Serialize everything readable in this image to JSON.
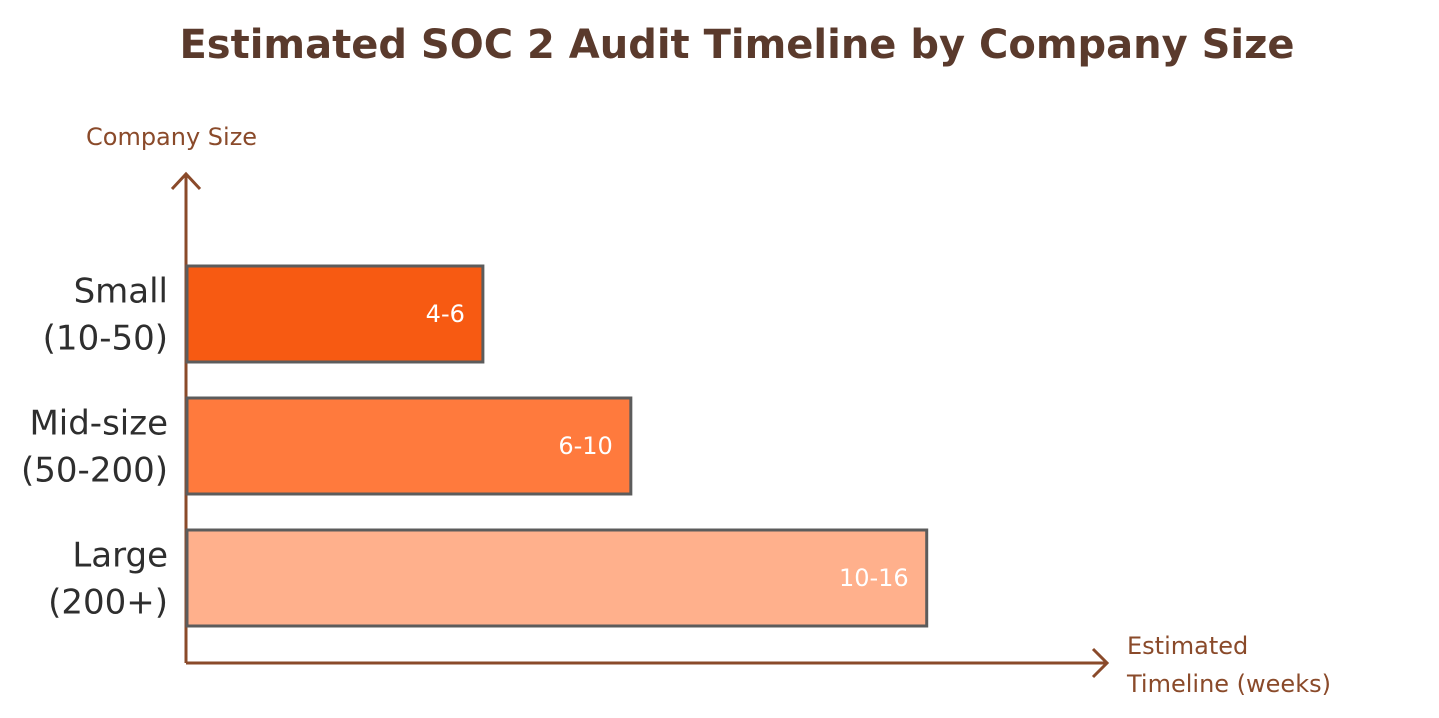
{
  "chart_data": {
    "type": "bar",
    "orientation": "horizontal",
    "title": "Estimated SOC 2 Audit Timeline by Company Size",
    "ylabel": "Company Size",
    "xlabel_lines": [
      "Estimated",
      "Timeline (weeks)"
    ],
    "categories": [
      {
        "lines": [
          "Small",
          "(10-50)"
        ]
      },
      {
        "lines": [
          "Mid-size",
          "(50-200)"
        ]
      },
      {
        "lines": [
          "Large",
          "(200+)"
        ]
      }
    ],
    "values": [
      6,
      9,
      15
    ],
    "value_labels": [
      "4-6",
      "6-10",
      "10-16"
    ],
    "xlim": [
      0,
      17.5
    ],
    "grid": false,
    "legend": "none",
    "colors": {
      "bars": [
        "#f75a12",
        "#ff7a3d",
        "#ffb08c"
      ],
      "bar_stroke": "#5c5c5c",
      "axis": "#8a4a2a",
      "title": "#5a3a2c",
      "category_text": "#2e2e2e",
      "value_text": "#ffffff"
    }
  }
}
